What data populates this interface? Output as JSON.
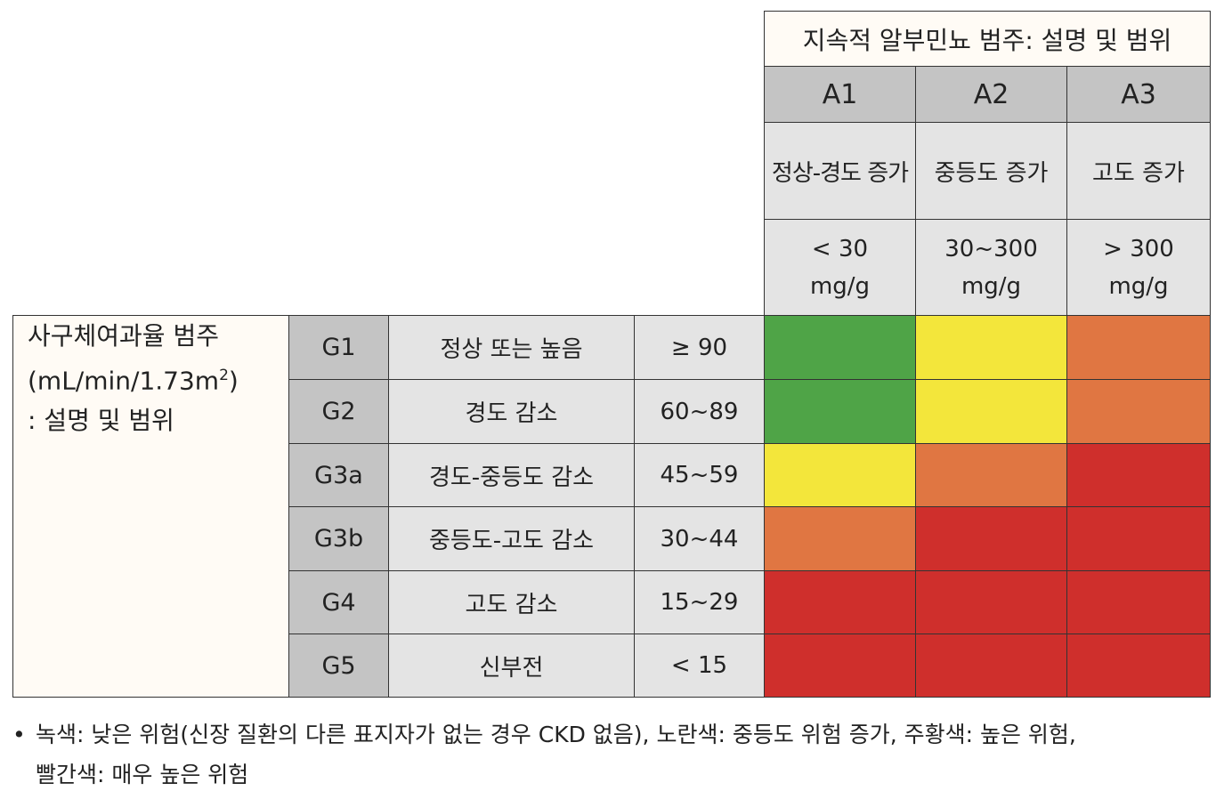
{
  "albuminuria": {
    "title": "지속적 알부민뇨 범주: 설명 및 범위",
    "categories": [
      {
        "code": "A1",
        "desc": "정상-경도 증가",
        "range_line1": "< 30",
        "range_line2": "mg/g"
      },
      {
        "code": "A2",
        "desc": "중등도 증가",
        "range_line1": "30~300",
        "range_line2": "mg/g"
      },
      {
        "code": "A3",
        "desc": "고도 증가",
        "range_line1": "> 300",
        "range_line2": "mg/g"
      }
    ]
  },
  "gfr": {
    "label_line1": "사구체여과율 범주",
    "label_line2": "(mL/min/1.73m",
    "label_sup": "2",
    "label_line2_end": ")",
    "label_line3": ": 설명 및 범위",
    "rows": [
      {
        "code": "G1",
        "desc": "정상 또는 높음",
        "range": "≥ 90",
        "risk": [
          "green",
          "yellow",
          "orange"
        ]
      },
      {
        "code": "G2",
        "desc": "경도 감소",
        "range": "60~89",
        "risk": [
          "green",
          "yellow",
          "orange"
        ]
      },
      {
        "code": "G3a",
        "desc": "경도-중등도 감소",
        "range": "45~59",
        "risk": [
          "yellow",
          "orange",
          "red"
        ]
      },
      {
        "code": "G3b",
        "desc": "중등도-고도 감소",
        "range": "30~44",
        "risk": [
          "orange",
          "red",
          "red"
        ]
      },
      {
        "code": "G4",
        "desc": "고도 감소",
        "range": "15~29",
        "risk": [
          "red",
          "red",
          "red"
        ]
      },
      {
        "code": "G5",
        "desc": "신부전",
        "range": "< 15",
        "risk": [
          "red",
          "red",
          "red"
        ]
      }
    ]
  },
  "colors": {
    "green": "#4fa447",
    "yellow": "#f3e63b",
    "orange": "#e07642",
    "red": "#cf2f2c"
  },
  "footnote": {
    "bullet": "•",
    "line1": "녹색: 낮은 위험(신장 질환의 다른 표지자가 없는 경우 CKD 없음), 노란색: 중등도 위험 증가, 주황색: 높은 위험,",
    "line2": "빨간색: 매우 높은 위험"
  }
}
